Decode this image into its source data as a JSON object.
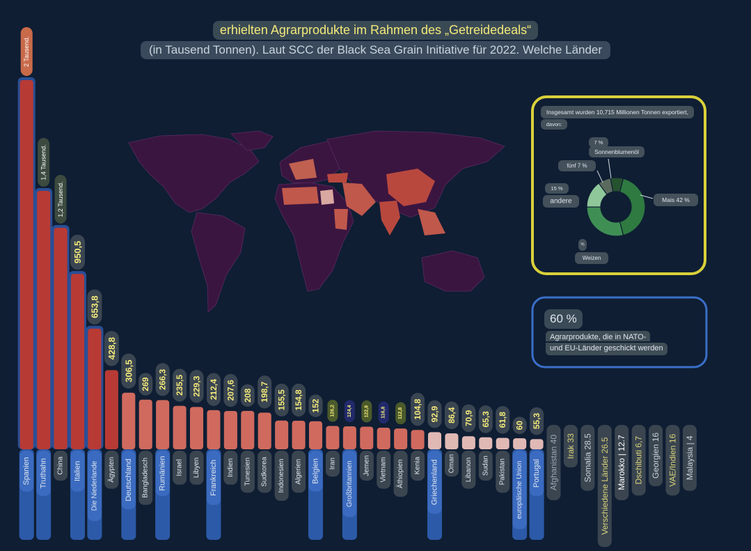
{
  "title_line1": "erhielten Agrarprodukte im Rahmen des „Getreidedeals“",
  "title_line2": "(in Tausend Tonnen). Laut SCC der Black Sea Grain Initiative für 2022. Welche Länder",
  "colors": {
    "background": "#0f1e33",
    "bar_high": "#b83a35",
    "bar_mid": "#d06a5e",
    "bar_low": "#e0b9b5",
    "label_blue": "#2c5aa8",
    "value_yellow": "#f3e97a",
    "land": "#3a1540",
    "panel_yellow": "#d9d03a",
    "panel_blue": "#3a6fc9"
  },
  "chart_data": [
    {
      "type": "bar",
      "categories": [
        "Spanien",
        "Truthahn",
        "China",
        "Italien",
        "Die Niederlande",
        "Ägypten",
        "Deutschland",
        "Bangladesch",
        "Rumänien",
        "Israel",
        "Libyen",
        "Frankreich",
        "Indien",
        "Tunesien",
        "Sudkorea",
        "Indonesien",
        "Algerien",
        "Belgien",
        "Iran",
        "Großbritannien",
        "Jemen",
        "Vietnam",
        "Äthiopien",
        "Kenia",
        "Griechenland",
        "Oman",
        "Libanon",
        "Sudan",
        "Pakistan",
        "europäische Union",
        "Portugal",
        "Afghanistan",
        "Bulgarien",
        "Irland",
        "Irak",
        "Somalia",
        "Verschiedene Länder",
        "Marokko",
        "Dschibuti",
        "Georgien",
        "VAE/Indien",
        "Malaysia"
      ],
      "values": [
        2000,
        1400,
        1200,
        950.5,
        653.8,
        428.8,
        306.5,
        269,
        266.3,
        235.5,
        229.3,
        212.4,
        207.6,
        208,
        198.7,
        155.5,
        154.8,
        152,
        126.2,
        124.4,
        122.8,
        116.8,
        112.8,
        104.8,
        92.9,
        86.4,
        70.9,
        65.3,
        61.8,
        60,
        55.3,
        40,
        34.4,
        33,
        33,
        28.5,
        26.5,
        12.7,
        6.7,
        16,
        16,
        4
      ],
      "value_labels": [
        "2 Tausend.",
        "1,4 Tausend.",
        "1,2 Tausend.",
        "950,5",
        "653,8",
        "428,8",
        "306,5",
        "269",
        "266,3",
        "235,5",
        "229,3",
        "212,4",
        "207,6",
        "208",
        "198,7",
        "155,5",
        "154,8",
        "152",
        "126,2",
        "124,4",
        "122,8",
        "116,8",
        "112,8",
        "104,8",
        "92,9",
        "86,4",
        "70,9",
        "65,3",
        "61,8",
        "60",
        "55,3",
        "40",
        "34,4",
        "33",
        "33",
        "28.5",
        "26.5",
        "12.7",
        "6,7",
        "16",
        "16",
        "4"
      ],
      "rotated_category_labels": [
        "Afghanistan 40",
        "Irak 33",
        "Somalia 28.5",
        "Verschiedene Länder 26.5",
        "Marokko | 12.7",
        "Dschibuti 6,7",
        "Georgien 16",
        "VAE/Indien 16",
        "Malaysia | 4"
      ],
      "xlabel": "",
      "ylabel": "",
      "ylim": [
        0,
        2000
      ]
    },
    {
      "type": "pie",
      "title": "Insgesamt wurden 10,715 Millionen Tonnen exportiert, davon:",
      "slices": [
        {
          "label": "Mais",
          "value": 42,
          "value_text": "Mais 42 %",
          "color": "#2e7a40"
        },
        {
          "label": "Weizen",
          "value": 29,
          "value_text": "%",
          "name_text": "Weizen",
          "color": "#3f8f55"
        },
        {
          "label": "andere",
          "value": 15,
          "value_text": "15 %",
          "name_text": "andere",
          "color": "#8fc79a"
        },
        {
          "label": "fünf",
          "value": 7,
          "value_text": "fünf 7 %",
          "color": "#5a6b5e"
        },
        {
          "label": "Sonnenblumenöl",
          "value": 7,
          "value_text": "7 %",
          "name_text": "Sonnenblumenöl",
          "color": "#25522f"
        }
      ]
    }
  ],
  "nato_panel": {
    "percent": "60 %",
    "line1": "Agrarprodukte, die in NATO-",
    "line2": "und EU-Länder geschickt werden"
  }
}
